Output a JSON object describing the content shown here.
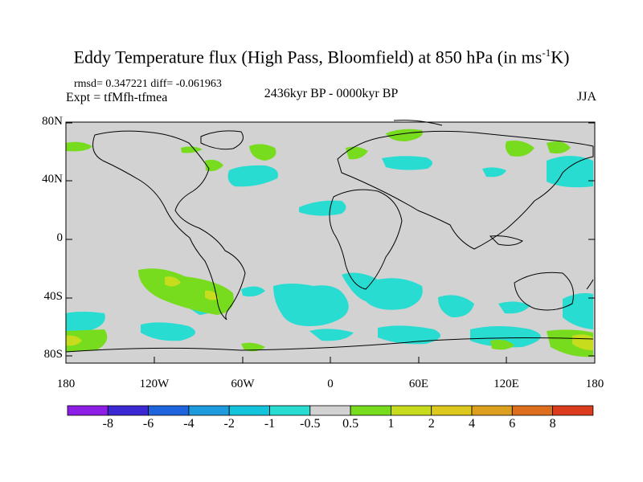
{
  "title": {
    "main": "Eddy Temperature flux (High Pass, Bloomfield) at 850 hPa (in ms",
    "sup": "-1",
    "tail": "K)"
  },
  "stats": "rmsd= 0.347221 diff= -0.061963",
  "expt": "Expt = tfMfh-tfmea",
  "period": "2436kyr BP - 0000kyr BP",
  "season": "JJA",
  "lat_labels": [
    "80N",
    "40N",
    "0",
    "40S",
    "80S"
  ],
  "lon_labels": [
    "180",
    "120W",
    "60W",
    "0",
    "60E",
    "120E",
    "180"
  ],
  "colorbar": {
    "labels": [
      "-8",
      "-6",
      "-4",
      "-2",
      "-1",
      "-0.5",
      "0.5",
      "1",
      "2",
      "4",
      "6",
      "8"
    ],
    "colors": [
      "#8c1ee6",
      "#3c28d2",
      "#1e64dc",
      "#1e9bdc",
      "#14c3dc",
      "#28dcd2",
      "#d2d2d2",
      "#78dc1e",
      "#c8dc1e",
      "#dcc81e",
      "#dca01e",
      "#dc6e1e",
      "#dc3c1e"
    ]
  },
  "colors": {
    "land_gray": "#d2d2d2",
    "cyan": "#28dcd2",
    "light_blue": "#14c3dc",
    "green": "#78dc1e",
    "yellow": "#c8dc1e"
  }
}
